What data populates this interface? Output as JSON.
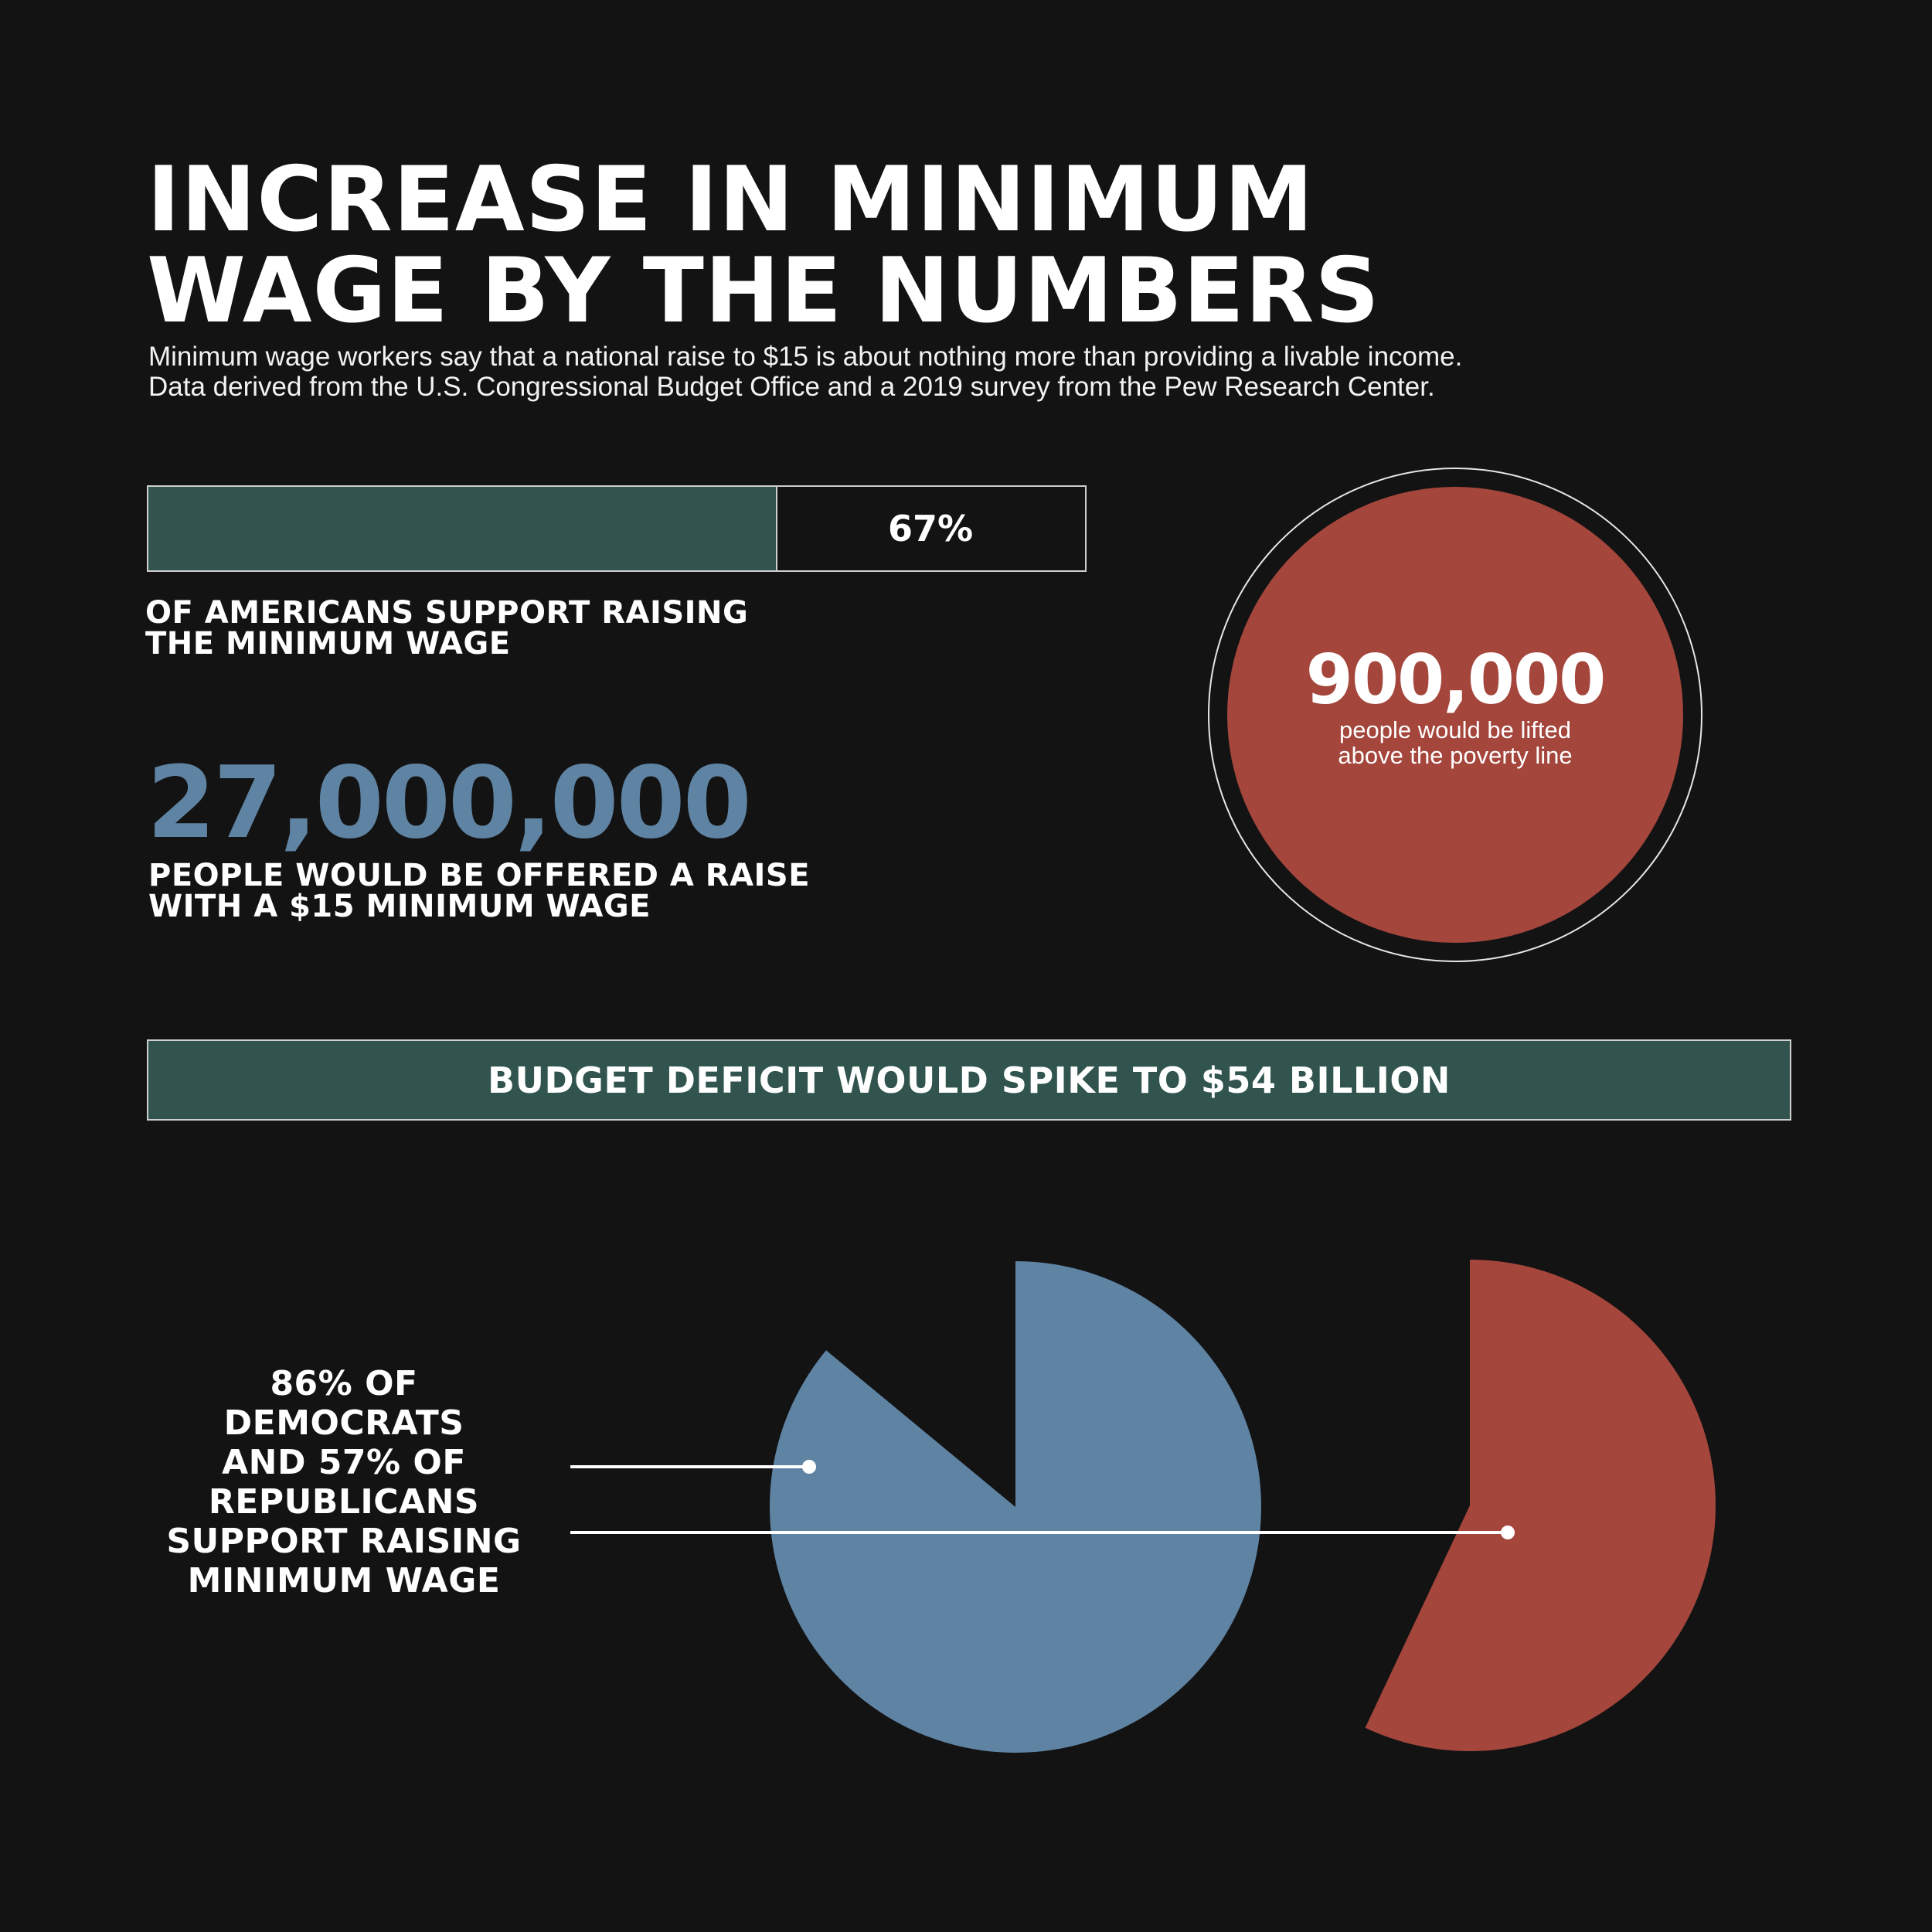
{
  "header": {
    "title_lines": [
      "INCREASE IN MINIMUM",
      "WAGE BY THE NUMBERS"
    ],
    "subtitle_lines": [
      "Minimum wage workers say that a national raise to $15 is about nothing more than providing a livable income.",
      "Data derived from the U.S. Congressional Budget Office and a 2019 survey from the Pew Research Center."
    ]
  },
  "support_stat": {
    "percent_label": "67%",
    "value": 0.67,
    "caption_lines": [
      "OF AMERICANS SUPPORT RAISING",
      "THE MINIMUM WAGE"
    ]
  },
  "raise_stat": {
    "number": "27,000,000",
    "caption_lines": [
      "PEOPLE WOULD BE OFFERED A RAISE",
      "WITH A $15 MINIMUM WAGE"
    ]
  },
  "poverty_stat": {
    "number": "900,000",
    "caption_lines": [
      "people would be lifted",
      "above the poverty line"
    ]
  },
  "deficit_banner": {
    "text": "BUDGET DEFICIT WOULD SPIKE TO $54 BILLION"
  },
  "party_support": {
    "label_lines": [
      "86% OF",
      "DEMOCRATS",
      "AND 57% OF",
      "REPUBLICANS",
      "SUPPORT RAISING",
      "MINIMUM WAGE"
    ]
  },
  "colors": {
    "background": "#131313",
    "green": "#31544e",
    "blue": "#5f83a3",
    "red": "#a4463c",
    "white": "#ffffff"
  },
  "chart_data": {
    "type": "pie",
    "series": [
      {
        "name": "",
        "value": 86,
        "color": "#5f83a3"
      },
      {
        "name": "",
        "value": 57,
        "color": "#a4463c"
      }
    ]
  }
}
